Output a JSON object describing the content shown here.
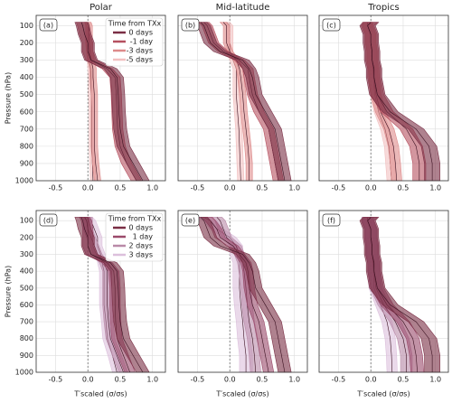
{
  "chart_data": [
    {
      "type": "line",
      "title": "Polar",
      "panel_label": "(a)",
      "ylabel": "Pressure (hPa)",
      "legend": true,
      "legend_title": "Time from TXx",
      "zero_line": true,
      "grid": true,
      "pressure": [
        80,
        100,
        150,
        200,
        250,
        300,
        350,
        400,
        500,
        600,
        700,
        800,
        900,
        1000
      ],
      "xlim": [
        -0.8,
        1.2
      ],
      "xticks": [
        -0.5,
        {
          "value": 0,
          "label": "0.0"
        },
        0.5,
        {
          "value": 1,
          "label": "1.0"
        }
      ],
      "ylim": [
        1000,
        40
      ],
      "yticks": [
        100,
        200,
        300,
        400,
        500,
        600,
        700,
        800,
        900,
        1000
      ],
      "series": [
        {
          "name": "0 days",
          "color": "#7a2e45",
          "band": 0.1,
          "values": [
            -0.1,
            -0.08,
            -0.05,
            0,
            0,
            0.05,
            0.35,
            0.45,
            0.47,
            0.48,
            0.5,
            0.55,
            0.7,
            0.85
          ]
        },
        {
          "name": "-1 day",
          "color": "#b5505f",
          "band": 0.08,
          "values": [
            -0.1,
            -0.08,
            -0.05,
            0,
            0,
            0.05,
            0.3,
            0.42,
            0.44,
            0.45,
            0.46,
            0.5,
            0.6,
            0.75
          ]
        },
        {
          "name": "-3 days",
          "color": "#dd8a8a",
          "band": 0.05,
          "values": [
            0,
            0.02,
            0.02,
            0.02,
            0.03,
            0.05,
            0.08,
            0.08,
            0.1,
            0.1,
            0.1,
            0.1,
            0.12,
            0.15
          ]
        },
        {
          "name": "-5 days",
          "color": "#f2c0c0",
          "band": 0.04,
          "values": [
            0,
            0,
            0,
            0,
            0.02,
            0.03,
            0.04,
            0.05,
            0.05,
            0.06,
            0.06,
            0.06,
            0.07,
            0.08
          ]
        }
      ]
    },
    {
      "type": "line",
      "title": "Mid-latitude",
      "panel_label": "(b)",
      "zero_line": true,
      "grid": true,
      "pressure": [
        80,
        100,
        150,
        200,
        250,
        300,
        350,
        400,
        500,
        600,
        700,
        800,
        900,
        1000
      ],
      "xlim": [
        -0.8,
        1.2
      ],
      "xticks": [
        -0.5,
        {
          "value": 0,
          "label": "0.0"
        },
        0.5,
        {
          "value": 1,
          "label": "1.0"
        }
      ],
      "ylim": [
        1000,
        40
      ],
      "yticks": [
        100,
        200,
        300,
        400,
        500,
        600,
        700,
        800,
        900,
        1000
      ],
      "series": [
        {
          "color": "#7a2e45",
          "band": 0.1,
          "values": [
            -0.45,
            -0.4,
            -0.35,
            -0.3,
            -0.15,
            0.2,
            0.3,
            0.35,
            0.4,
            0.55,
            0.7,
            0.75,
            0.8,
            0.85
          ]
        },
        {
          "color": "#b5505f",
          "band": 0.08,
          "values": [
            -0.4,
            -0.35,
            -0.3,
            -0.25,
            -0.1,
            0.15,
            0.28,
            0.3,
            0.35,
            0.45,
            0.6,
            0.65,
            0.7,
            0.75
          ]
        },
        {
          "color": "#dd8a8a",
          "band": 0.05,
          "values": [
            -0.1,
            -0.05,
            -0.05,
            -0.05,
            0,
            0.1,
            0.15,
            0.17,
            0.2,
            0.22,
            0.25,
            0.28,
            0.3,
            0.3
          ]
        },
        {
          "color": "#f2c0c0",
          "band": 0.05,
          "values": [
            -0.05,
            0,
            0,
            0,
            0,
            0.05,
            0.1,
            0.1,
            0.1,
            0.12,
            0.14,
            0.15,
            0.16,
            0.17
          ]
        }
      ]
    },
    {
      "type": "line",
      "title": "Tropics",
      "panel_label": "(c)",
      "zero_line": true,
      "grid": true,
      "pressure": [
        80,
        100,
        150,
        200,
        250,
        300,
        350,
        400,
        500,
        600,
        700,
        800,
        900,
        1000
      ],
      "xlim": [
        -0.8,
        1.2
      ],
      "xticks": [
        -0.5,
        {
          "value": 0,
          "label": "0.0"
        },
        0.5,
        {
          "value": 1,
          "label": "1.0"
        }
      ],
      "ylim": [
        1000,
        40
      ],
      "yticks": [
        100,
        200,
        300,
        400,
        500,
        600,
        700,
        800,
        900,
        1000
      ],
      "series": [
        {
          "color": "#7a2e45",
          "band": 0.12,
          "values": [
            0,
            -0.05,
            0,
            0,
            0.02,
            0.02,
            0.05,
            0.05,
            0.1,
            0.3,
            0.7,
            0.9,
            0.95,
            0.95
          ]
        },
        {
          "color": "#b5505f",
          "band": 0.1,
          "values": [
            0,
            -0.05,
            0,
            0,
            0.02,
            0.02,
            0.05,
            0.05,
            0.1,
            0.25,
            0.55,
            0.7,
            0.75,
            0.75
          ]
        },
        {
          "color": "#dd8a8a",
          "band": 0.08,
          "values": [
            -0.05,
            -0.05,
            0,
            0,
            0.02,
            0.02,
            0.04,
            0.05,
            0.08,
            0.15,
            0.28,
            0.35,
            0.38,
            0.4
          ]
        },
        {
          "color": "#f2c0c0",
          "band": 0.07,
          "values": [
            -0.05,
            -0.05,
            0,
            0,
            0.02,
            0.02,
            0.03,
            0.04,
            0.06,
            0.12,
            0.22,
            0.28,
            0.3,
            0.32
          ]
        }
      ]
    },
    {
      "type": "line",
      "panel_label": "(d)",
      "ylabel": "Pressure (hPa)",
      "xlabel": "T′scaled (σ/σs)",
      "legend": true,
      "legend_title": "Time from TXx",
      "zero_line": true,
      "grid": true,
      "pressure": [
        80,
        100,
        150,
        200,
        250,
        300,
        350,
        400,
        500,
        600,
        700,
        800,
        900,
        1000
      ],
      "xlim": [
        -0.8,
        1.2
      ],
      "xticks": [
        -0.5,
        {
          "value": 0,
          "label": "0.0"
        },
        0.5,
        {
          "value": 1,
          "label": "1.0"
        }
      ],
      "ylim": [
        1000,
        40
      ],
      "yticks": [
        100,
        200,
        300,
        400,
        500,
        600,
        700,
        800,
        900,
        1000
      ],
      "series": [
        {
          "name": "0 days",
          "color": "#7a2e45",
          "band": 0.1,
          "values": [
            -0.1,
            -0.08,
            -0.05,
            0,
            0,
            0.05,
            0.35,
            0.45,
            0.47,
            0.48,
            0.5,
            0.55,
            0.7,
            0.85
          ]
        },
        {
          "name": "1 day",
          "color": "#9a4a6a",
          "band": 0.08,
          "values": [
            -0.05,
            -0.02,
            0,
            0,
            0,
            0.05,
            0.3,
            0.4,
            0.42,
            0.42,
            0.43,
            0.45,
            0.55,
            0.65
          ]
        },
        {
          "name": "2 days",
          "color": "#b98aa8",
          "band": 0.07,
          "values": [
            0,
            0,
            0,
            0.05,
            0.1,
            0.15,
            0.25,
            0.3,
            0.3,
            0.3,
            0.32,
            0.35,
            0.45,
            0.55
          ]
        },
        {
          "name": "3 days",
          "color": "#dcc0dc",
          "band": 0.07,
          "values": [
            0,
            0.05,
            0.1,
            0.15,
            0.15,
            0.2,
            0.22,
            0.25,
            0.25,
            0.25,
            0.28,
            0.3,
            0.38,
            0.45
          ]
        }
      ]
    },
    {
      "type": "line",
      "panel_label": "(e)",
      "xlabel": "T′scaled (σ/σs)",
      "zero_line": true,
      "grid": true,
      "pressure": [
        80,
        100,
        150,
        200,
        250,
        300,
        350,
        400,
        500,
        600,
        700,
        800,
        900,
        1000
      ],
      "xlim": [
        -0.8,
        1.2
      ],
      "xticks": [
        -0.5,
        {
          "value": 0,
          "label": "0.0"
        },
        0.5,
        {
          "value": 1,
          "label": "1.0"
        }
      ],
      "ylim": [
        1000,
        40
      ],
      "yticks": [
        100,
        200,
        300,
        400,
        500,
        600,
        700,
        800,
        900,
        1000
      ],
      "series": [
        {
          "color": "#7a2e45",
          "band": 0.1,
          "values": [
            -0.45,
            -0.4,
            -0.35,
            -0.3,
            -0.15,
            0.2,
            0.3,
            0.35,
            0.4,
            0.55,
            0.7,
            0.75,
            0.8,
            0.85
          ]
        },
        {
          "color": "#9a4a6a",
          "band": 0.08,
          "values": [
            -0.35,
            -0.3,
            -0.2,
            -0.15,
            0.05,
            0.15,
            0.25,
            0.28,
            0.3,
            0.35,
            0.45,
            0.5,
            0.55,
            0.6
          ]
        },
        {
          "color": "#b98aa8",
          "band": 0.08,
          "values": [
            -0.2,
            -0.15,
            -0.1,
            -0.05,
            0.1,
            0.15,
            0.2,
            0.22,
            0.25,
            0.27,
            0.3,
            0.35,
            0.38,
            0.4
          ]
        },
        {
          "color": "#dcc0dc",
          "band": 0.1,
          "values": [
            -0.4,
            -0.3,
            -0.2,
            0,
            0.1,
            0.1,
            0.15,
            0.15,
            0.15,
            0.17,
            0.2,
            0.22,
            0.25,
            0.25
          ]
        }
      ]
    },
    {
      "type": "line",
      "panel_label": "(f)",
      "xlabel": "T′scaled (σ/σs)",
      "zero_line": true,
      "grid": true,
      "pressure": [
        80,
        100,
        150,
        200,
        250,
        300,
        350,
        400,
        500,
        600,
        700,
        800,
        900,
        1000
      ],
      "xlim": [
        -0.8,
        1.2
      ],
      "xticks": [
        -0.5,
        {
          "value": 0,
          "label": "0.0"
        },
        0.5,
        {
          "value": 1,
          "label": "1.0"
        }
      ],
      "ylim": [
        1000,
        40
      ],
      "yticks": [
        100,
        200,
        300,
        400,
        500,
        600,
        700,
        800,
        900,
        1000
      ],
      "series": [
        {
          "color": "#7a2e45",
          "band": 0.12,
          "values": [
            0,
            -0.05,
            0,
            0,
            0.02,
            0.02,
            0.05,
            0.05,
            0.1,
            0.3,
            0.7,
            0.9,
            0.95,
            0.95
          ]
        },
        {
          "color": "#9a4a6a",
          "band": 0.1,
          "values": [
            0,
            -0.05,
            0,
            0,
            0.02,
            0.02,
            0.05,
            0.05,
            0.1,
            0.25,
            0.5,
            0.65,
            0.7,
            0.72
          ]
        },
        {
          "color": "#b98aa8",
          "band": 0.09,
          "values": [
            -0.05,
            -0.05,
            0,
            0,
            0.02,
            0.02,
            0.04,
            0.05,
            0.08,
            0.2,
            0.38,
            0.5,
            0.55,
            0.55
          ]
        },
        {
          "color": "#dcc0dc",
          "band": 0.08,
          "values": [
            -0.05,
            -0.05,
            0,
            0,
            0.02,
            0.02,
            0.03,
            0.04,
            0.05,
            0.15,
            0.25,
            0.3,
            0.32,
            0.33
          ]
        }
      ]
    }
  ]
}
